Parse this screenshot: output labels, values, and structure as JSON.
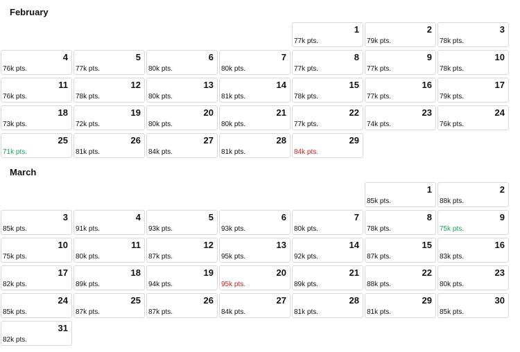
{
  "colors": {
    "low": "#1aa65a",
    "high": "#d02020",
    "normal": "#111111"
  },
  "months": [
    {
      "name": "February",
      "start_weekday": 4,
      "days": [
        {
          "day": "1",
          "pts": "77k pts.",
          "flag": ""
        },
        {
          "day": "2",
          "pts": "79k pts.",
          "flag": ""
        },
        {
          "day": "3",
          "pts": "78k pts.",
          "flag": ""
        },
        {
          "day": "4",
          "pts": "76k pts.",
          "flag": ""
        },
        {
          "day": "5",
          "pts": "77k pts.",
          "flag": ""
        },
        {
          "day": "6",
          "pts": "80k pts.",
          "flag": ""
        },
        {
          "day": "7",
          "pts": "80k pts.",
          "flag": ""
        },
        {
          "day": "8",
          "pts": "77k pts.",
          "flag": ""
        },
        {
          "day": "9",
          "pts": "77k pts.",
          "flag": ""
        },
        {
          "day": "10",
          "pts": "78k pts.",
          "flag": ""
        },
        {
          "day": "11",
          "pts": "76k pts.",
          "flag": ""
        },
        {
          "day": "12",
          "pts": "78k pts.",
          "flag": ""
        },
        {
          "day": "13",
          "pts": "80k pts.",
          "flag": ""
        },
        {
          "day": "14",
          "pts": "81k pts.",
          "flag": ""
        },
        {
          "day": "15",
          "pts": "78k pts.",
          "flag": ""
        },
        {
          "day": "16",
          "pts": "77k pts.",
          "flag": ""
        },
        {
          "day": "17",
          "pts": "79k pts.",
          "flag": ""
        },
        {
          "day": "18",
          "pts": "73k pts.",
          "flag": ""
        },
        {
          "day": "19",
          "pts": "72k pts.",
          "flag": ""
        },
        {
          "day": "20",
          "pts": "80k pts.",
          "flag": ""
        },
        {
          "day": "21",
          "pts": "80k pts.",
          "flag": ""
        },
        {
          "day": "22",
          "pts": "77k pts.",
          "flag": ""
        },
        {
          "day": "23",
          "pts": "74k pts.",
          "flag": ""
        },
        {
          "day": "24",
          "pts": "76k pts.",
          "flag": ""
        },
        {
          "day": "25",
          "pts": "71k pts.",
          "flag": "low"
        },
        {
          "day": "26",
          "pts": "81k pts.",
          "flag": ""
        },
        {
          "day": "27",
          "pts": "84k pts.",
          "flag": ""
        },
        {
          "day": "28",
          "pts": "81k pts.",
          "flag": ""
        },
        {
          "day": "29",
          "pts": "84k pts.",
          "flag": "high"
        }
      ]
    },
    {
      "name": "March",
      "start_weekday": 5,
      "days": [
        {
          "day": "1",
          "pts": "85k pts.",
          "flag": ""
        },
        {
          "day": "2",
          "pts": "88k pts.",
          "flag": ""
        },
        {
          "day": "3",
          "pts": "85k pts.",
          "flag": ""
        },
        {
          "day": "4",
          "pts": "91k pts.",
          "flag": ""
        },
        {
          "day": "5",
          "pts": "93k pts.",
          "flag": ""
        },
        {
          "day": "6",
          "pts": "93k pts.",
          "flag": ""
        },
        {
          "day": "7",
          "pts": "80k pts.",
          "flag": ""
        },
        {
          "day": "8",
          "pts": "78k pts.",
          "flag": ""
        },
        {
          "day": "9",
          "pts": "75k pts.",
          "flag": "low"
        },
        {
          "day": "10",
          "pts": "75k pts.",
          "flag": ""
        },
        {
          "day": "11",
          "pts": "80k pts.",
          "flag": ""
        },
        {
          "day": "12",
          "pts": "87k pts.",
          "flag": ""
        },
        {
          "day": "13",
          "pts": "95k pts.",
          "flag": ""
        },
        {
          "day": "14",
          "pts": "92k pts.",
          "flag": ""
        },
        {
          "day": "15",
          "pts": "87k pts.",
          "flag": ""
        },
        {
          "day": "16",
          "pts": "83k pts.",
          "flag": ""
        },
        {
          "day": "17",
          "pts": "82k pts.",
          "flag": ""
        },
        {
          "day": "18",
          "pts": "89k pts.",
          "flag": ""
        },
        {
          "day": "19",
          "pts": "94k pts.",
          "flag": ""
        },
        {
          "day": "20",
          "pts": "95k pts.",
          "flag": "high"
        },
        {
          "day": "21",
          "pts": "89k pts.",
          "flag": ""
        },
        {
          "day": "22",
          "pts": "88k pts.",
          "flag": ""
        },
        {
          "day": "23",
          "pts": "80k pts.",
          "flag": ""
        },
        {
          "day": "24",
          "pts": "85k pts.",
          "flag": ""
        },
        {
          "day": "25",
          "pts": "87k pts.",
          "flag": ""
        },
        {
          "day": "26",
          "pts": "87k pts.",
          "flag": ""
        },
        {
          "day": "27",
          "pts": "84k pts.",
          "flag": ""
        },
        {
          "day": "28",
          "pts": "81k pts.",
          "flag": ""
        },
        {
          "day": "29",
          "pts": "81k pts.",
          "flag": ""
        },
        {
          "day": "30",
          "pts": "85k pts.",
          "flag": ""
        },
        {
          "day": "31",
          "pts": "82k pts.",
          "flag": ""
        }
      ]
    }
  ]
}
